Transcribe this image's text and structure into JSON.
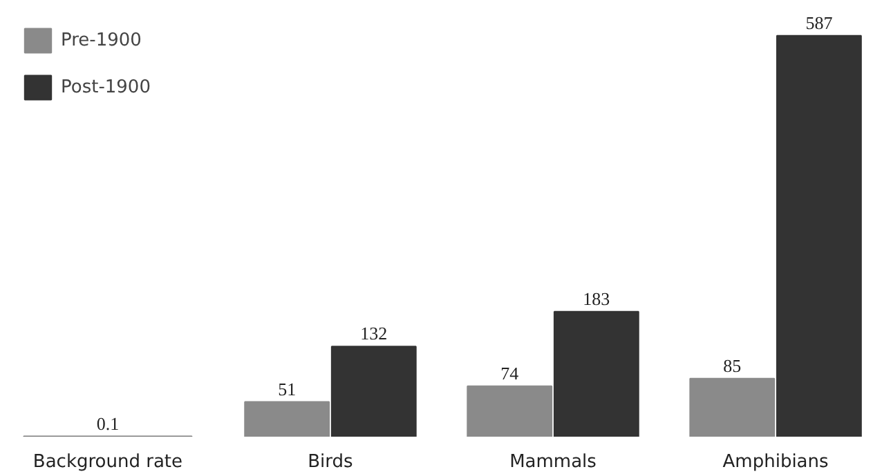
{
  "chart_data": {
    "type": "bar",
    "categories": [
      "Background rate",
      "Birds",
      "Mammals",
      "Amphibians"
    ],
    "series": [
      {
        "color": "#7a7a7a",
        "values": [
          0.1,
          null,
          null,
          null
        ]
      },
      {
        "name": "Pre-1900",
        "color": "#8a8a8a",
        "values": [
          null,
          51,
          74,
          85
        ]
      },
      {
        "name": "Post-1900",
        "color": "#333333",
        "values": [
          null,
          132,
          183,
          587
        ]
      }
    ],
    "data_labels": true,
    "legend": "top left",
    "grid": false
  }
}
